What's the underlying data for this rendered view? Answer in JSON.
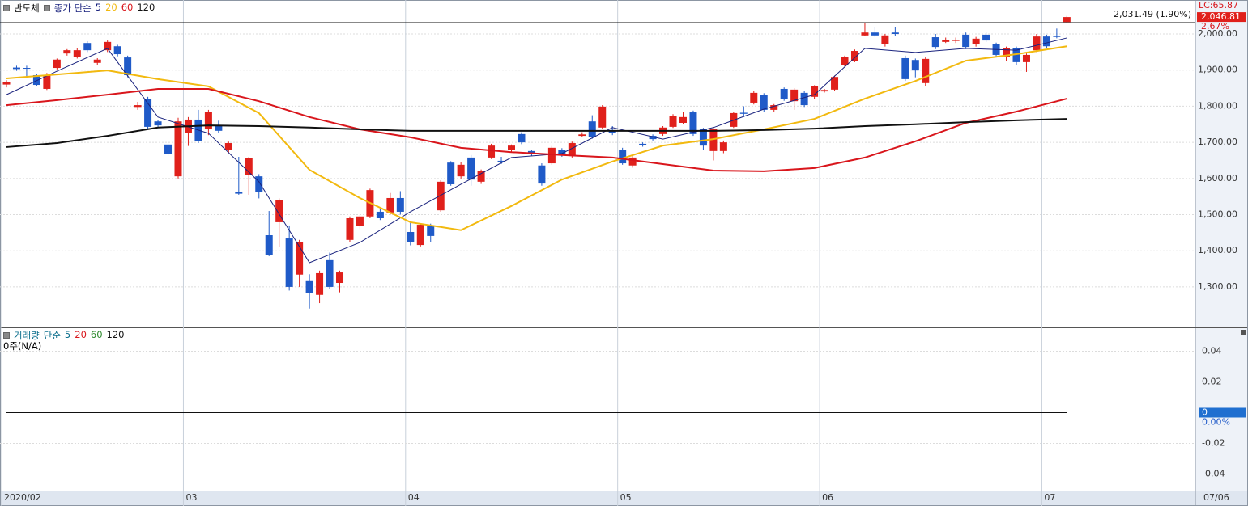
{
  "chart_data": [
    {
      "type": "candlestick",
      "title": "반도체",
      "ma_label": "종가 단순",
      "categories": [
        "2020/02",
        null,
        null,
        null,
        null,
        null,
        null,
        null,
        null,
        null,
        null,
        null,
        null,
        null,
        null,
        null,
        null,
        null,
        "03",
        null,
        null,
        null,
        null,
        null,
        null,
        null,
        null,
        null,
        null,
        null,
        null,
        null,
        null,
        null,
        null,
        null,
        null,
        null,
        null,
        null,
        "04",
        null,
        null,
        null,
        null,
        null,
        null,
        null,
        null,
        null,
        null,
        null,
        null,
        null,
        null,
        null,
        null,
        null,
        null,
        null,
        null,
        "05",
        null,
        null,
        null,
        null,
        null,
        null,
        null,
        null,
        null,
        null,
        null,
        null,
        null,
        null,
        null,
        null,
        null,
        null,
        null,
        "06",
        null,
        null,
        null,
        null,
        null,
        null,
        null,
        null,
        null,
        null,
        null,
        null,
        null,
        null,
        null,
        null,
        null,
        null,
        null,
        null,
        null,
        "07",
        null,
        null
      ],
      "x_end_label": "07/06",
      "open": [
        1860,
        1907,
        1906,
        1886,
        1848,
        1906,
        1946,
        1937,
        1975,
        1920,
        1955,
        1966,
        1935,
        1798,
        1821,
        1758,
        1694,
        1606,
        1725,
        1763,
        1736,
        1747,
        1680,
        1562,
        1609,
        1606,
        1443,
        1479,
        1434,
        1334,
        1316,
        1278,
        1374,
        1311,
        1430,
        1468,
        1495,
        1508,
        1506,
        1546,
        1452,
        1416,
        1468,
        1512,
        1644,
        1606,
        1658,
        1591,
        1658,
        1649,
        1678,
        1723,
        1676,
        1636,
        1642,
        1680,
        1662,
        1718,
        1758,
        1741,
        1734,
        1680,
        1636,
        1696,
        1718,
        1723,
        1743,
        1754,
        1783,
        1736,
        1676,
        1676,
        1743,
        1782,
        1810,
        1832,
        1790,
        1848,
        1814,
        1837,
        1826,
        1841,
        1846,
        1915,
        1926,
        1996,
        2004,
        1973,
        2004,
        1933,
        1928,
        1864,
        1991,
        1978,
        1981,
        1998,
        1971,
        1998,
        1971,
        1937,
        1960,
        1922,
        1955,
        1993,
        1994,
        2033
      ],
      "high": [
        1872,
        1912,
        1912,
        1890,
        1892,
        1932,
        1958,
        1960,
        1980,
        1933,
        1982,
        1970,
        1940,
        1812,
        1826,
        1762,
        1700,
        1768,
        1770,
        1790,
        1790,
        1760,
        1702,
        1660,
        1660,
        1612,
        1510,
        1545,
        1470,
        1430,
        1335,
        1345,
        1395,
        1345,
        1495,
        1500,
        1572,
        1515,
        1560,
        1565,
        1480,
        1476,
        1475,
        1595,
        1648,
        1645,
        1665,
        1625,
        1696,
        1660,
        1694,
        1728,
        1680,
        1642,
        1690,
        1684,
        1702,
        1728,
        1775,
        1803,
        1745,
        1685,
        1662,
        1700,
        1722,
        1745,
        1778,
        1785,
        1788,
        1740,
        1740,
        1705,
        1785,
        1800,
        1842,
        1836,
        1806,
        1852,
        1850,
        1842,
        1858,
        1848,
        1885,
        1940,
        1957,
        2030,
        2020,
        2000,
        2020,
        1940,
        1932,
        1935,
        2000,
        1990,
        1990,
        2004,
        1992,
        2004,
        1976,
        1965,
        1965,
        1946,
        2000,
        1998,
        2015,
        2050
      ],
      "low": [
        1852,
        1898,
        1880,
        1855,
        1845,
        1902,
        1940,
        1932,
        1950,
        1915,
        1950,
        1938,
        1880,
        1790,
        1738,
        1740,
        1662,
        1600,
        1690,
        1698,
        1720,
        1725,
        1670,
        1555,
        1555,
        1545,
        1385,
        1410,
        1290,
        1300,
        1240,
        1255,
        1295,
        1285,
        1425,
        1460,
        1490,
        1485,
        1500,
        1500,
        1415,
        1412,
        1425,
        1508,
        1580,
        1600,
        1580,
        1585,
        1654,
        1640,
        1674,
        1695,
        1662,
        1580,
        1638,
        1660,
        1658,
        1714,
        1710,
        1736,
        1720,
        1638,
        1630,
        1688,
        1705,
        1718,
        1740,
        1750,
        1718,
        1680,
        1650,
        1670,
        1740,
        1770,
        1805,
        1785,
        1785,
        1815,
        1790,
        1798,
        1820,
        1838,
        1842,
        1910,
        1922,
        1994,
        1992,
        1965,
        1995,
        1870,
        1880,
        1855,
        1958,
        1975,
        1975,
        1958,
        1965,
        1978,
        1935,
        1925,
        1915,
        1895,
        1950,
        1960,
        1988,
        2030
      ],
      "close": [
        1868,
        1903,
        1904,
        1859,
        1886,
        1929,
        1955,
        1955,
        1955,
        1929,
        1978,
        1944,
        1886,
        1803,
        1743,
        1747,
        1667,
        1758,
        1763,
        1703,
        1785,
        1732,
        1698,
        1558,
        1656,
        1562,
        1389,
        1540,
        1300,
        1423,
        1284,
        1338,
        1300,
        1340,
        1490,
        1495,
        1568,
        1490,
        1546,
        1508,
        1423,
        1472,
        1441,
        1591,
        1584,
        1638,
        1597,
        1620,
        1691,
        1645,
        1691,
        1700,
        1667,
        1586,
        1685,
        1665,
        1698,
        1722,
        1714,
        1799,
        1725,
        1642,
        1658,
        1692,
        1709,
        1741,
        1774,
        1770,
        1723,
        1691,
        1736,
        1700,
        1781,
        1779,
        1837,
        1790,
        1803,
        1821,
        1846,
        1803,
        1855,
        1845,
        1881,
        1937,
        1953,
        2004,
        1996,
        1996,
        2000,
        1875,
        1899,
        1931,
        1964,
        1984,
        1983,
        1964,
        1987,
        1982,
        1942,
        1960,
        1922,
        1942,
        1993,
        1966,
        1992,
        2046.81
      ],
      "up_color": "#e0201b",
      "down_color": "#1f5ac8",
      "series": [
        {
          "name": "5",
          "color": "#1a237e",
          "x": [
            0,
            5,
            10,
            15,
            20,
            25,
            30,
            35,
            40,
            45,
            50,
            55,
            60,
            65,
            70,
            75,
            80,
            85,
            90,
            95,
            100,
            105
          ],
          "values": [
            1832,
            1897,
            1960,
            1770,
            1725,
            1591,
            1367,
            1423,
            1508,
            1584,
            1658,
            1669,
            1741,
            1709,
            1741,
            1792,
            1832,
            1960,
            1949,
            1960,
            1955,
            1989
          ]
        },
        {
          "name": "20",
          "color": "#f2b90f",
          "x": [
            0,
            5,
            10,
            15,
            20,
            25,
            30,
            35,
            40,
            45,
            50,
            55,
            60,
            65,
            70,
            75,
            80,
            85,
            90,
            95,
            100,
            105
          ],
          "values": [
            1877,
            1888,
            1899,
            1875,
            1855,
            1781,
            1624,
            1546,
            1479,
            1457,
            1524,
            1597,
            1647,
            1691,
            1709,
            1736,
            1765,
            1821,
            1870,
            1926,
            1944,
            1966
          ]
        },
        {
          "name": "60",
          "color": "#d9161c",
          "x": [
            0,
            5,
            10,
            15,
            20,
            25,
            30,
            35,
            40,
            45,
            50,
            55,
            60,
            65,
            70,
            75,
            80,
            85,
            90,
            95,
            100,
            105
          ],
          "values": [
            1803,
            1817,
            1832,
            1848,
            1848,
            1814,
            1770,
            1736,
            1714,
            1685,
            1673,
            1665,
            1658,
            1640,
            1622,
            1620,
            1629,
            1658,
            1703,
            1754,
            1785,
            1821
          ]
        },
        {
          "name": "120",
          "color": "#111111",
          "x": [
            0,
            5,
            10,
            15,
            20,
            25,
            30,
            35,
            40,
            45,
            50,
            55,
            60,
            65,
            70,
            75,
            80,
            85,
            90,
            95,
            100,
            105
          ],
          "values": [
            1687,
            1698,
            1718,
            1741,
            1747,
            1745,
            1741,
            1736,
            1732,
            1732,
            1732,
            1732,
            1732,
            1732,
            1732,
            1734,
            1738,
            1745,
            1750,
            1756,
            1761,
            1765
          ]
        }
      ],
      "ylim": [
        1188,
        2094
      ],
      "yticks": [
        {
          "value": 2000,
          "label": "2,000.00"
        },
        {
          "value": 1900,
          "label": "1,900.00"
        },
        {
          "value": 1800,
          "label": "1,800.00"
        },
        {
          "value": 1700,
          "label": "1,700.00"
        },
        {
          "value": 1600,
          "label": "1,600.00"
        },
        {
          "value": 1500,
          "label": "1,500.00"
        },
        {
          "value": 1400,
          "label": "1,400.00"
        },
        {
          "value": 1300,
          "label": "1,300.00"
        }
      ],
      "ref_line": {
        "value": 2031.49,
        "label": "2,031.49 (1.90%)"
      },
      "last_price": {
        "value": 2046.81,
        "label": "2,046.81"
      },
      "change_label": "2.67%",
      "lc_label": "LC:65.87",
      "grid": true
    },
    {
      "type": "line",
      "title": "거래량",
      "ma_label": "단순",
      "status": "0주(N/A)",
      "legend": [
        {
          "name": "5",
          "color": "#0a6e8c"
        },
        {
          "name": "20",
          "color": "#d9161c"
        },
        {
          "name": "60",
          "color": "#2e8b2e"
        },
        {
          "name": "120",
          "color": "#111111"
        }
      ],
      "ylim": [
        -0.0508,
        0.055
      ],
      "yticks": [
        0.04,
        0.02,
        -0.02,
        -0.04
      ],
      "current": {
        "value": 0,
        "label": "0"
      },
      "current_pct": "0.00%",
      "grid": true
    }
  ]
}
